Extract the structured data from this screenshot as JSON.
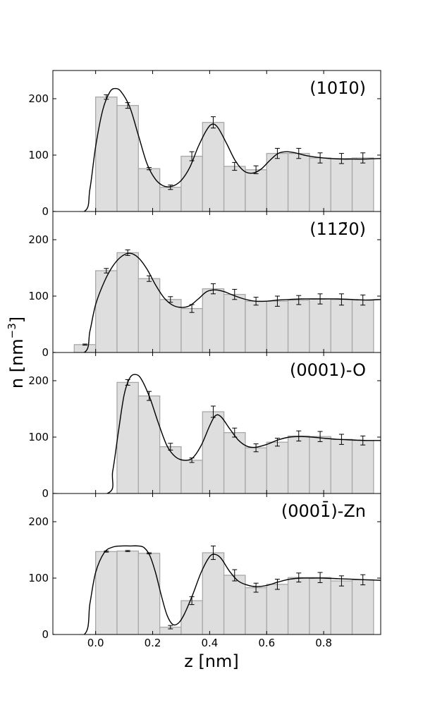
{
  "chart_data": {
    "type": "bar",
    "xlabel": "z [nm]",
    "ylabel": "n [nm",
    "ylabel_sup": "−3",
    "ylabel_end": "]",
    "xlim": [
      -0.15,
      1.0
    ],
    "ylim": [
      0,
      250
    ],
    "x_ticks": [
      0.0,
      0.2,
      0.4,
      0.6,
      0.8
    ],
    "x_tick_labels": [
      "0.0",
      "0.2",
      "0.4",
      "0.6",
      "0.8"
    ],
    "y_ticks": [
      0,
      100,
      200
    ],
    "y_tick_labels": [
      "0",
      "100",
      "200"
    ],
    "bar_width": 0.075,
    "bar_fill": "#dedede",
    "bar_edge": "#a8a8a8",
    "curve_color": "#000000",
    "grid": false,
    "panels": [
      {
        "label": "(10̄1̄0)",
        "label_text": "(101̄0)",
        "bars": [
          {
            "x": 0.0375,
            "y": 203,
            "err": 4
          },
          {
            "x": 0.1125,
            "y": 188,
            "err": 5
          },
          {
            "x": 0.1875,
            "y": 76,
            "err": 2
          },
          {
            "x": 0.2625,
            "y": 43,
            "err": 4
          },
          {
            "x": 0.3375,
            "y": 98,
            "err": 8
          },
          {
            "x": 0.4125,
            "y": 158,
            "err": 10
          },
          {
            "x": 0.4875,
            "y": 80,
            "err": 7
          },
          {
            "x": 0.5625,
            "y": 74,
            "err": 7
          },
          {
            "x": 0.6375,
            "y": 103,
            "err": 9
          },
          {
            "x": 0.7125,
            "y": 103,
            "err": 9
          },
          {
            "x": 0.7875,
            "y": 95,
            "err": 9
          },
          {
            "x": 0.8625,
            "y": 94,
            "err": 9
          },
          {
            "x": 0.9375,
            "y": 95,
            "err": 9
          }
        ],
        "curve": [
          [
            -0.15,
            0
          ],
          [
            -0.04,
            0
          ],
          [
            -0.02,
            40
          ],
          [
            0.0,
            115
          ],
          [
            0.025,
            180
          ],
          [
            0.05,
            212
          ],
          [
            0.07,
            218
          ],
          [
            0.09,
            212
          ],
          [
            0.12,
            185
          ],
          [
            0.15,
            135
          ],
          [
            0.18,
            85
          ],
          [
            0.21,
            57
          ],
          [
            0.24,
            45
          ],
          [
            0.27,
            45
          ],
          [
            0.3,
            55
          ],
          [
            0.33,
            78
          ],
          [
            0.36,
            115
          ],
          [
            0.39,
            145
          ],
          [
            0.41,
            155
          ],
          [
            0.43,
            148
          ],
          [
            0.46,
            120
          ],
          [
            0.49,
            90
          ],
          [
            0.52,
            72
          ],
          [
            0.55,
            68
          ],
          [
            0.58,
            75
          ],
          [
            0.61,
            90
          ],
          [
            0.64,
            103
          ],
          [
            0.67,
            106
          ],
          [
            0.7,
            104
          ],
          [
            0.74,
            99
          ],
          [
            0.78,
            96
          ],
          [
            0.82,
            94
          ],
          [
            0.86,
            93
          ],
          [
            0.9,
            93
          ],
          [
            0.95,
            93
          ],
          [
            1.0,
            94
          ]
        ]
      },
      {
        "label_text": "(112̄0)",
        "bars": [
          {
            "x": -0.0375,
            "y": 14,
            "err": 1
          },
          {
            "x": 0.0375,
            "y": 145,
            "err": 4
          },
          {
            "x": 0.1125,
            "y": 177,
            "err": 5
          },
          {
            "x": 0.1875,
            "y": 131,
            "err": 5
          },
          {
            "x": 0.2625,
            "y": 94,
            "err": 5
          },
          {
            "x": 0.3375,
            "y": 78,
            "err": 7
          },
          {
            "x": 0.4125,
            "y": 113,
            "err": 9
          },
          {
            "x": 0.4875,
            "y": 103,
            "err": 9
          },
          {
            "x": 0.5625,
            "y": 91,
            "err": 7
          },
          {
            "x": 0.6375,
            "y": 91,
            "err": 9
          },
          {
            "x": 0.7125,
            "y": 93,
            "err": 8
          },
          {
            "x": 0.7875,
            "y": 95,
            "err": 9
          },
          {
            "x": 0.8625,
            "y": 94,
            "err": 10
          },
          {
            "x": 0.9375,
            "y": 93,
            "err": 9
          }
        ],
        "curve": [
          [
            -0.15,
            0
          ],
          [
            -0.04,
            0
          ],
          [
            -0.02,
            38
          ],
          [
            0.0,
            85
          ],
          [
            0.03,
            125
          ],
          [
            0.06,
            153
          ],
          [
            0.09,
            170
          ],
          [
            0.12,
            176
          ],
          [
            0.15,
            168
          ],
          [
            0.18,
            148
          ],
          [
            0.21,
            120
          ],
          [
            0.24,
            97
          ],
          [
            0.27,
            84
          ],
          [
            0.3,
            80
          ],
          [
            0.33,
            83
          ],
          [
            0.36,
            95
          ],
          [
            0.39,
            108
          ],
          [
            0.42,
            111
          ],
          [
            0.45,
            108
          ],
          [
            0.48,
            102
          ],
          [
            0.52,
            95
          ],
          [
            0.56,
            91
          ],
          [
            0.6,
            91
          ],
          [
            0.64,
            93
          ],
          [
            0.68,
            94
          ],
          [
            0.72,
            95
          ],
          [
            0.76,
            95
          ],
          [
            0.8,
            95
          ],
          [
            0.85,
            95
          ],
          [
            0.9,
            94
          ],
          [
            0.95,
            93
          ],
          [
            1.0,
            94
          ]
        ]
      },
      {
        "label_text": "(0001)-O",
        "bars": [
          {
            "x": 0.1125,
            "y": 197,
            "err": 5
          },
          {
            "x": 0.1875,
            "y": 173,
            "err": 8
          },
          {
            "x": 0.2625,
            "y": 83,
            "err": 6
          },
          {
            "x": 0.3375,
            "y": 59,
            "err": 4
          },
          {
            "x": 0.4125,
            "y": 145,
            "err": 10
          },
          {
            "x": 0.4875,
            "y": 108,
            "err": 8
          },
          {
            "x": 0.5625,
            "y": 81,
            "err": 7
          },
          {
            "x": 0.6375,
            "y": 91,
            "err": 7
          },
          {
            "x": 0.7125,
            "y": 102,
            "err": 9
          },
          {
            "x": 0.7875,
            "y": 101,
            "err": 9
          },
          {
            "x": 0.8625,
            "y": 96,
            "err": 9
          },
          {
            "x": 0.9375,
            "y": 94,
            "err": 8
          }
        ],
        "curve": [
          [
            -0.15,
            0
          ],
          [
            0.04,
            0
          ],
          [
            0.06,
            40
          ],
          [
            0.08,
            110
          ],
          [
            0.1,
            175
          ],
          [
            0.12,
            205
          ],
          [
            0.14,
            211
          ],
          [
            0.16,
            203
          ],
          [
            0.19,
            170
          ],
          [
            0.22,
            125
          ],
          [
            0.25,
            85
          ],
          [
            0.28,
            65
          ],
          [
            0.31,
            59
          ],
          [
            0.34,
            63
          ],
          [
            0.37,
            85
          ],
          [
            0.4,
            120
          ],
          [
            0.42,
            138
          ],
          [
            0.44,
            136
          ],
          [
            0.47,
            115
          ],
          [
            0.5,
            95
          ],
          [
            0.53,
            84
          ],
          [
            0.56,
            82
          ],
          [
            0.6,
            87
          ],
          [
            0.64,
            95
          ],
          [
            0.68,
            100
          ],
          [
            0.72,
            101
          ],
          [
            0.76,
            100
          ],
          [
            0.8,
            98
          ],
          [
            0.85,
            96
          ],
          [
            0.9,
            95
          ],
          [
            0.95,
            94
          ],
          [
            1.0,
            94
          ]
        ]
      },
      {
        "label_text": "(0001̄)-Zn",
        "bars": [
          {
            "x": 0.0375,
            "y": 147,
            "err": 1
          },
          {
            "x": 0.1125,
            "y": 148,
            "err": 1
          },
          {
            "x": 0.1875,
            "y": 144,
            "err": 1
          },
          {
            "x": 0.2625,
            "y": 13,
            "err": 3
          },
          {
            "x": 0.3375,
            "y": 60,
            "err": 7
          },
          {
            "x": 0.4125,
            "y": 145,
            "err": 12
          },
          {
            "x": 0.4875,
            "y": 105,
            "err": 10
          },
          {
            "x": 0.5625,
            "y": 83,
            "err": 8
          },
          {
            "x": 0.6375,
            "y": 89,
            "err": 9
          },
          {
            "x": 0.7125,
            "y": 101,
            "err": 8
          },
          {
            "x": 0.7875,
            "y": 101,
            "err": 9
          },
          {
            "x": 0.8625,
            "y": 95,
            "err": 9
          },
          {
            "x": 0.9375,
            "y": 97,
            "err": 9
          }
        ],
        "curve": [
          [
            -0.15,
            0
          ],
          [
            -0.04,
            0
          ],
          [
            -0.02,
            55
          ],
          [
            0.0,
            110
          ],
          [
            0.03,
            145
          ],
          [
            0.06,
            155
          ],
          [
            0.09,
            157
          ],
          [
            0.12,
            157
          ],
          [
            0.15,
            157
          ],
          [
            0.17,
            154
          ],
          [
            0.19,
            140
          ],
          [
            0.21,
            110
          ],
          [
            0.23,
            70
          ],
          [
            0.25,
            35
          ],
          [
            0.27,
            18
          ],
          [
            0.29,
            20
          ],
          [
            0.31,
            35
          ],
          [
            0.34,
            70
          ],
          [
            0.37,
            110
          ],
          [
            0.4,
            138
          ],
          [
            0.42,
            142
          ],
          [
            0.44,
            135
          ],
          [
            0.47,
            112
          ],
          [
            0.5,
            95
          ],
          [
            0.53,
            88
          ],
          [
            0.56,
            85
          ],
          [
            0.6,
            87
          ],
          [
            0.64,
            93
          ],
          [
            0.68,
            98
          ],
          [
            0.72,
            100
          ],
          [
            0.76,
            100
          ],
          [
            0.8,
            100
          ],
          [
            0.85,
            99
          ],
          [
            0.9,
            98
          ],
          [
            0.95,
            97
          ],
          [
            1.0,
            96
          ]
        ]
      }
    ]
  }
}
